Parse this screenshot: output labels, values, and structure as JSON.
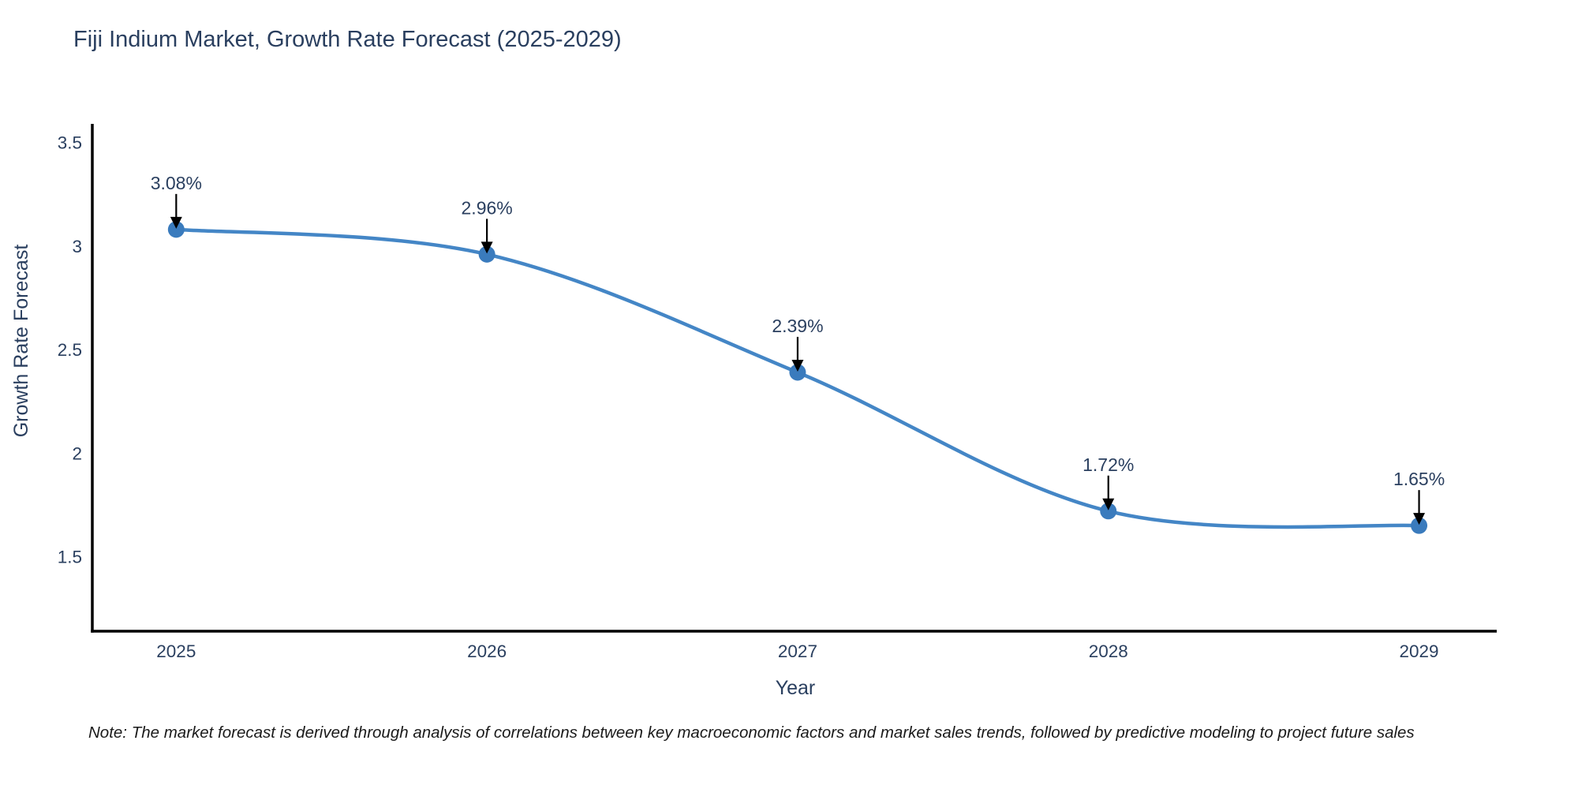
{
  "note": {
    "text": "Note: The market forecast is derived through analysis of correlations between key macroeconomic factors and market sales trends, followed by predictive modeling to project future sales"
  },
  "chart_data": {
    "type": "line",
    "title": "Fiji Indium Market, Growth Rate Forecast (2025-2029)",
    "xlabel": "Year",
    "ylabel": "Growth Rate Forecast",
    "x": [
      2025,
      2026,
      2027,
      2028,
      2029
    ],
    "series": [
      {
        "name": "Growth Rate Forecast",
        "values": [
          3.08,
          2.96,
          2.39,
          1.72,
          1.65
        ]
      }
    ],
    "point_labels": [
      "3.08%",
      "2.96%",
      "2.39%",
      "1.72%",
      "1.65%"
    ],
    "xtick_labels": [
      "2025",
      "2026",
      "2027",
      "2028",
      "2029"
    ],
    "yticks": [
      1.5,
      2,
      2.5,
      3,
      3.5
    ],
    "ytick_labels": [
      "1.5",
      "2",
      "2.5",
      "3",
      "3.5"
    ],
    "xlim": [
      2024.73,
      2029.25
    ],
    "ylim": [
      1.14,
      3.59
    ],
    "line_shape": "spline",
    "grid": false,
    "legend": "none",
    "markers": true,
    "annotation_arrows": true,
    "colors": {
      "line": "#4486c6",
      "marker": "#3a7bbd",
      "axis": "#000000",
      "tick_text": "#2a3f5f",
      "title_text": "#2a3f5f",
      "annotation_text": "#2a3f5f",
      "arrow": "#000000",
      "background": "#ffffff"
    }
  }
}
